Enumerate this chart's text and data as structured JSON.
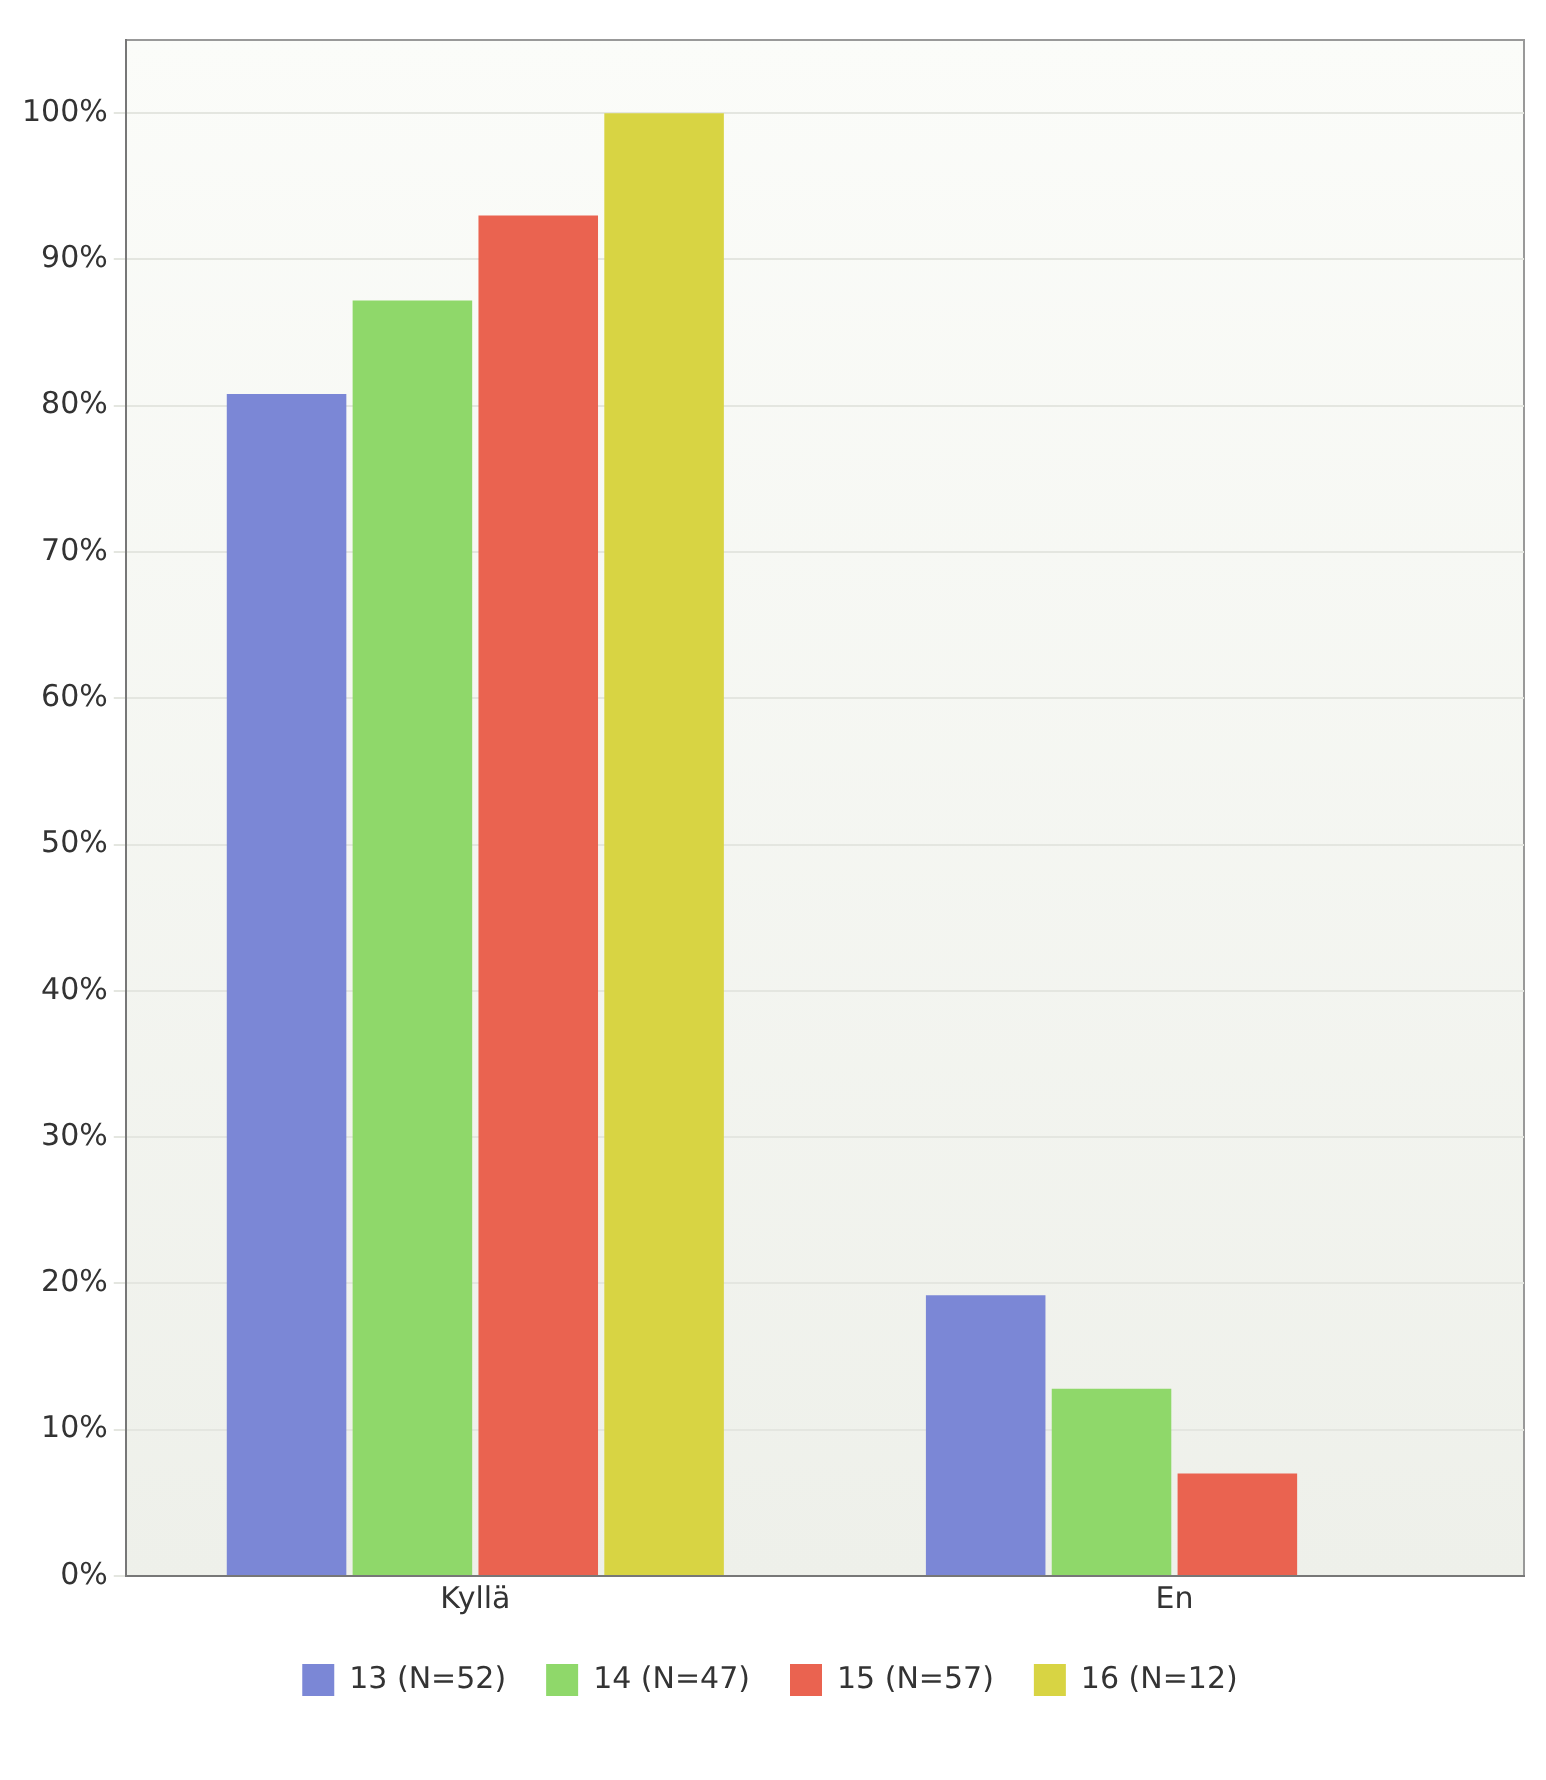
{
  "chart_data": {
    "type": "bar",
    "categories": [
      "Kyllä",
      "En"
    ],
    "series": [
      {
        "name": "13 (N=52)",
        "color": "#7b87d6",
        "values": [
          80.8,
          19.2
        ]
      },
      {
        "name": "14 (N=47)",
        "color": "#8fd86a",
        "values": [
          87.2,
          12.8
        ]
      },
      {
        "name": "15 (N=57)",
        "color": "#ea6350",
        "values": [
          93.0,
          7.0
        ]
      },
      {
        "name": "16 (N=12)",
        "color": "#d8d443",
        "values": [
          100,
          0
        ]
      }
    ],
    "ylim": [
      0,
      105
    ],
    "yticks": [
      {
        "value": 0,
        "label": "0%"
      },
      {
        "value": 10,
        "label": "10%"
      },
      {
        "value": 20,
        "label": "20%"
      },
      {
        "value": 30,
        "label": "30%"
      },
      {
        "value": 40,
        "label": "40%"
      },
      {
        "value": 50,
        "label": "50%"
      },
      {
        "value": 60,
        "label": "60%"
      },
      {
        "value": 70,
        "label": "70%"
      },
      {
        "value": 80,
        "label": "80%"
      },
      {
        "value": 90,
        "label": "90%"
      },
      {
        "value": 100,
        "label": "100%"
      }
    ],
    "grid": "y",
    "legend": "bottom"
  }
}
